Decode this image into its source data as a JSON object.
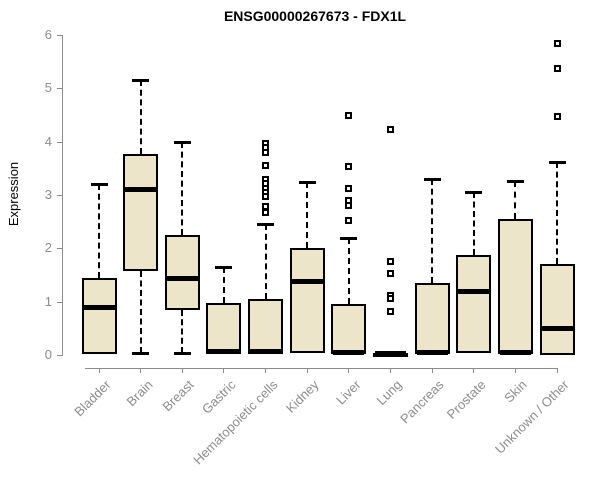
{
  "chart_data": {
    "type": "boxplot",
    "title": "ENSG00000267673 - FDX1L",
    "ylabel": "Expression",
    "ylim": [
      0,
      6
    ],
    "yticks": [
      0,
      1,
      2,
      3,
      4,
      5,
      6
    ],
    "grid": false,
    "legend": "none",
    "box_fill_color": "#ECE5C9",
    "box_border_color": "#000000",
    "axis_color": "#8c8c8c",
    "label_color": "#8c8c8c",
    "categories": [
      "Bladder",
      "Brain",
      "Breast",
      "Gastric",
      "Hematopoietic cells",
      "Kidney",
      "Liver",
      "Lung",
      "Pancreas",
      "Prostate",
      "Skin",
      "Unknown / Other"
    ],
    "series": [
      {
        "name": "Bladder",
        "low": 0.02,
        "q1": 0.02,
        "median": 0.9,
        "q3": 1.45,
        "high": 3.2,
        "outliers": []
      },
      {
        "name": "Brain",
        "low": 0.03,
        "q1": 1.57,
        "median": 3.1,
        "q3": 3.77,
        "high": 5.15,
        "outliers": []
      },
      {
        "name": "Breast",
        "low": 0.03,
        "q1": 0.85,
        "median": 1.43,
        "q3": 2.25,
        "high": 4.0,
        "outliers": []
      },
      {
        "name": "Gastric",
        "low": 0.02,
        "q1": 0.02,
        "median": 0.06,
        "q3": 0.97,
        "high": 1.65,
        "outliers": []
      },
      {
        "name": "Hematopoietic cells",
        "low": 0.02,
        "q1": 0.02,
        "median": 0.06,
        "q3": 1.05,
        "high": 2.45,
        "outliers": [
          3.97,
          3.9,
          3.8,
          3.55,
          3.3,
          3.22,
          3.13,
          3.05,
          2.97,
          2.78,
          2.68
        ]
      },
      {
        "name": "Kidney",
        "low": 0.03,
        "q1": 0.03,
        "median": 1.38,
        "q3": 2.0,
        "high": 3.25,
        "outliers": []
      },
      {
        "name": "Liver",
        "low": 0.02,
        "q1": 0.02,
        "median": 0.05,
        "q3": 0.95,
        "high": 2.2,
        "outliers": [
          4.5,
          3.53,
          3.12,
          2.9,
          2.8,
          2.53
        ]
      },
      {
        "name": "Lung",
        "low": 0.0,
        "q1": 0.0,
        "median": 0.02,
        "q3": 0.04,
        "high": 0.04,
        "outliers": [
          4.22,
          1.75,
          1.53,
          1.12,
          1.06,
          0.81
        ]
      },
      {
        "name": "Pancreas",
        "low": 0.02,
        "q1": 0.02,
        "median": 0.05,
        "q3": 1.35,
        "high": 3.3,
        "outliers": []
      },
      {
        "name": "Prostate",
        "low": 0.03,
        "q1": 0.03,
        "median": 1.2,
        "q3": 1.87,
        "high": 3.05,
        "outliers": []
      },
      {
        "name": "Skin",
        "low": 0.02,
        "q1": 0.02,
        "median": 0.05,
        "q3": 2.55,
        "high": 3.27,
        "outliers": []
      },
      {
        "name": "Unknown / Other",
        "low": 0.0,
        "q1": 0.0,
        "median": 0.5,
        "q3": 1.7,
        "high": 3.62,
        "outliers": [
          5.85,
          5.37,
          4.47
        ]
      }
    ]
  }
}
